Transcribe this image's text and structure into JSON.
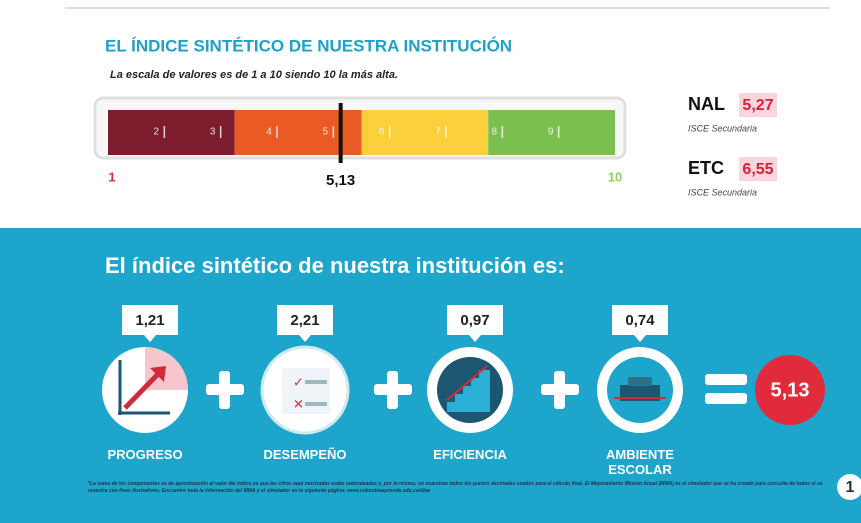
{
  "header": {
    "title": "EL ÍNDICE SINTÉTICO DE NUESTRA INSTITUCIÓN",
    "subtitle": "La escala de valores es de 1 a 10 siendo 10 la más alta."
  },
  "gauge": {
    "min": 1,
    "max": 10,
    "ticks": [
      2,
      3,
      4,
      5,
      6,
      7,
      8,
      9
    ],
    "segments": [
      {
        "from": 1,
        "to": 3.25,
        "color": "#7d1c2c"
      },
      {
        "from": 3.25,
        "to": 5.5,
        "color": "#ea5a24"
      },
      {
        "from": 5.5,
        "to": 7.75,
        "color": "#fcd03c"
      },
      {
        "from": 7.75,
        "to": 10,
        "color": "#7dbf4e"
      }
    ],
    "min_color": "#e5283a",
    "max_color": "#8ccf5a",
    "value": {
      "value": 5.13,
      "label": "5,13"
    }
  },
  "reference": [
    {
      "name": "NAL",
      "value": {
        "value": 5.27,
        "label": "5,27"
      },
      "note": "ISCE Secundaria"
    },
    {
      "name": "ETC",
      "value": {
        "value": 6.55,
        "label": "6,55"
      },
      "note": "ISCE Secundaria"
    }
  ],
  "summary": {
    "title": "El índice sintético de nuestra institución es:",
    "components": [
      {
        "name": "PROGRESO",
        "value": {
          "value": 1.21,
          "label": "1,21"
        }
      },
      {
        "name": "DESEMPEÑO",
        "value": {
          "value": 2.21,
          "label": "2,21"
        }
      },
      {
        "name": "EFICIENCIA",
        "value": {
          "value": 0.97,
          "label": "0,97"
        }
      },
      {
        "name": "AMBIENTE ESCOLAR",
        "value": {
          "value": 0.74,
          "label": "0,74"
        }
      }
    ],
    "total": {
      "value": 5.13,
      "label": "5,13"
    }
  },
  "footnote": "*La suma de los componentes es de aproximación al valor del índice ya que las cifras aquí mostradas están redondeadas y, por lo mismo, no muestran todos los puntos decimales usados para el cálculo final. El Mejoramiento Mínimo Anual (MMA) es el simulador que se ha creado para consulta de todos si se muestra con fines ilustrativos. Encuentre toda la información del MMA y el simulador en la siguiente página: www.colombiaaprende.edu.co/diae",
  "page": 1
}
